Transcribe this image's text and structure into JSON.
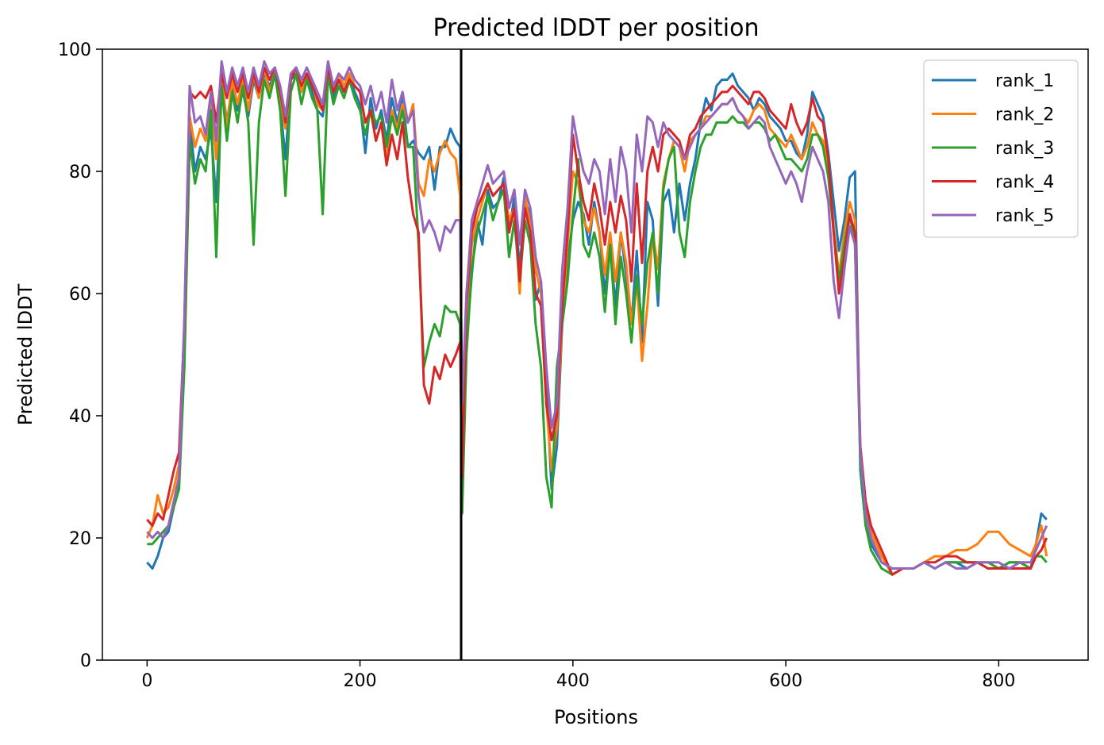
{
  "chart_data": {
    "type": "line",
    "title": "Predicted lDDT per position",
    "xlabel": "Positions",
    "ylabel": "Predicted lDDT",
    "xlim": [
      -42,
      884
    ],
    "ylim": [
      0,
      100
    ],
    "xticks": [
      0,
      200,
      400,
      600,
      800
    ],
    "yticks": [
      0,
      20,
      40,
      60,
      80,
      100
    ],
    "grid": false,
    "legend_position": "top-right",
    "vertical_line": {
      "x": 295,
      "color": "#000000"
    },
    "x": [
      0,
      5,
      10,
      15,
      20,
      25,
      30,
      35,
      40,
      45,
      50,
      55,
      60,
      65,
      70,
      75,
      80,
      85,
      90,
      95,
      100,
      105,
      110,
      115,
      120,
      125,
      130,
      135,
      140,
      145,
      150,
      155,
      160,
      165,
      170,
      175,
      180,
      185,
      190,
      195,
      200,
      205,
      210,
      215,
      220,
      225,
      230,
      235,
      240,
      245,
      250,
      255,
      260,
      265,
      270,
      275,
      280,
      285,
      290,
      294,
      296,
      300,
      305,
      310,
      315,
      320,
      325,
      330,
      335,
      340,
      345,
      350,
      355,
      360,
      365,
      370,
      375,
      380,
      385,
      390,
      395,
      400,
      405,
      410,
      415,
      420,
      425,
      430,
      435,
      440,
      445,
      450,
      455,
      460,
      465,
      470,
      475,
      480,
      485,
      490,
      495,
      500,
      505,
      510,
      515,
      520,
      525,
      530,
      535,
      540,
      545,
      550,
      555,
      560,
      565,
      570,
      575,
      580,
      585,
      590,
      595,
      600,
      605,
      610,
      615,
      620,
      625,
      630,
      635,
      640,
      645,
      650,
      655,
      660,
      665,
      670,
      675,
      680,
      690,
      700,
      710,
      720,
      730,
      740,
      750,
      760,
      770,
      780,
      790,
      800,
      810,
      820,
      830,
      835,
      840,
      845
    ],
    "series": [
      {
        "name": "rank_1",
        "color": "#1f77b4",
        "values": [
          16,
          15,
          17,
          20,
          21,
          25,
          30,
          50,
          88,
          80,
          84,
          82,
          87,
          75,
          95,
          88,
          94,
          90,
          93,
          89,
          95,
          92,
          96,
          94,
          96,
          91,
          82,
          95,
          96,
          93,
          96,
          93,
          90,
          89,
          96,
          92,
          95,
          93,
          96,
          93,
          91,
          83,
          92,
          87,
          90,
          85,
          92,
          88,
          92,
          84,
          85,
          83,
          82,
          84,
          77,
          84,
          84,
          87,
          85,
          84,
          26,
          52,
          63,
          72,
          68,
          77,
          74,
          75,
          79,
          70,
          76,
          64,
          75,
          73,
          59,
          62,
          45,
          28,
          35,
          55,
          65,
          72,
          75,
          73,
          68,
          75,
          70,
          60,
          68,
          58,
          70,
          63,
          55,
          67,
          52,
          75,
          72,
          58,
          75,
          77,
          70,
          78,
          72,
          78,
          82,
          88,
          92,
          90,
          94,
          95,
          95,
          96,
          94,
          93,
          92,
          90,
          92,
          91,
          89,
          88,
          87,
          85,
          85,
          83,
          82,
          86,
          93,
          91,
          89,
          83,
          75,
          67,
          72,
          79,
          80,
          31,
          22,
          19,
          16,
          15,
          15,
          15,
          16,
          15,
          16,
          16,
          15,
          16,
          15,
          15,
          16,
          16,
          15,
          19,
          24,
          23
        ]
      },
      {
        "name": "rank_2",
        "color": "#ff7f0e",
        "values": [
          20,
          22,
          27,
          24,
          25,
          28,
          32,
          55,
          89,
          84,
          87,
          85,
          92,
          82,
          96,
          87,
          95,
          91,
          95,
          90,
          96,
          92,
          97,
          93,
          96,
          92,
          87,
          95,
          97,
          93,
          96,
          95,
          91,
          90,
          97,
          93,
          96,
          94,
          96,
          94,
          93,
          88,
          90,
          85,
          88,
          82,
          90,
          87,
          91,
          88,
          91,
          78,
          76,
          82,
          80,
          83,
          85,
          83,
          82,
          76,
          26,
          55,
          68,
          72,
          75,
          78,
          76,
          77,
          78,
          72,
          74,
          60,
          76,
          71,
          64,
          60,
          42,
          31,
          38,
          56,
          68,
          80,
          78,
          72,
          70,
          74,
          70,
          63,
          70,
          62,
          70,
          65,
          55,
          62,
          49,
          58,
          70,
          64,
          78,
          82,
          85,
          84,
          80,
          85,
          86,
          87,
          89,
          89,
          90,
          91,
          91,
          92,
          90,
          89,
          88,
          90,
          91,
          90,
          87,
          86,
          85,
          84,
          86,
          84,
          82,
          84,
          88,
          86,
          85,
          80,
          71,
          63,
          70,
          75,
          72,
          34,
          25,
          21,
          17,
          14,
          15,
          15,
          16,
          17,
          17,
          18,
          18,
          19,
          21,
          21,
          19,
          18,
          17,
          19,
          22,
          17
        ]
      },
      {
        "name": "rank_3",
        "color": "#2ca02c",
        "values": [
          19,
          19,
          20,
          21,
          22,
          25,
          28,
          48,
          85,
          78,
          82,
          80,
          90,
          66,
          94,
          85,
          93,
          88,
          94,
          88,
          68,
          88,
          95,
          92,
          96,
          90,
          76,
          93,
          96,
          91,
          95,
          92,
          90,
          73,
          96,
          91,
          94,
          92,
          95,
          92,
          90,
          86,
          90,
          88,
          89,
          84,
          89,
          86,
          90,
          84,
          84,
          68,
          48,
          52,
          55,
          53,
          58,
          57,
          57,
          55,
          24,
          50,
          64,
          70,
          73,
          76,
          72,
          75,
          77,
          66,
          72,
          62,
          72,
          68,
          55,
          48,
          30,
          25,
          48,
          55,
          62,
          73,
          82,
          68,
          66,
          70,
          66,
          57,
          68,
          55,
          66,
          60,
          52,
          63,
          55,
          65,
          70,
          60,
          77,
          82,
          84,
          70,
          66,
          75,
          80,
          84,
          86,
          86,
          88,
          88,
          88,
          89,
          88,
          88,
          87,
          88,
          88,
          87,
          85,
          86,
          84,
          82,
          82,
          81,
          80,
          82,
          86,
          86,
          84,
          79,
          70,
          62,
          68,
          73,
          68,
          32,
          22,
          18,
          15,
          14,
          15,
          15,
          16,
          15,
          16,
          16,
          16,
          16,
          16,
          15,
          16,
          16,
          15,
          17,
          17,
          16
        ]
      },
      {
        "name": "rank_4",
        "color": "#d62728",
        "values": [
          23,
          22,
          24,
          23,
          27,
          31,
          34,
          55,
          93,
          92,
          93,
          92,
          94,
          88,
          96,
          92,
          96,
          93,
          96,
          92,
          96,
          93,
          97,
          95,
          97,
          93,
          88,
          95,
          97,
          94,
          96,
          94,
          92,
          90,
          97,
          93,
          95,
          93,
          95,
          94,
          93,
          88,
          90,
          85,
          88,
          81,
          86,
          82,
          88,
          79,
          73,
          70,
          45,
          42,
          48,
          46,
          50,
          48,
          50,
          52,
          30,
          58,
          70,
          74,
          76,
          78,
          76,
          77,
          78,
          70,
          74,
          62,
          74,
          70,
          60,
          58,
          42,
          36,
          40,
          58,
          70,
          86,
          80,
          75,
          72,
          78,
          74,
          68,
          75,
          70,
          76,
          72,
          62,
          78,
          65,
          80,
          84,
          80,
          86,
          87,
          86,
          85,
          82,
          86,
          87,
          89,
          90,
          91,
          92,
          93,
          93,
          94,
          93,
          92,
          91,
          93,
          93,
          92,
          90,
          89,
          88,
          87,
          91,
          88,
          86,
          88,
          92,
          89,
          88,
          82,
          70,
          60,
          66,
          73,
          70,
          35,
          26,
          22,
          18,
          14,
          15,
          15,
          16,
          16,
          17,
          17,
          16,
          16,
          15,
          15,
          15,
          15,
          15,
          17,
          18,
          20
        ]
      },
      {
        "name": "rank_5",
        "color": "#9467bd",
        "values": [
          21,
          20,
          21,
          20,
          22,
          26,
          30,
          56,
          94,
          88,
          89,
          86,
          93,
          85,
          98,
          93,
          97,
          94,
          97,
          93,
          97,
          94,
          98,
          96,
          97,
          94,
          89,
          96,
          97,
          95,
          97,
          95,
          93,
          91,
          98,
          94,
          96,
          95,
          97,
          95,
          94,
          91,
          94,
          90,
          93,
          88,
          95,
          90,
          93,
          88,
          90,
          76,
          70,
          72,
          70,
          67,
          71,
          70,
          72,
          72,
          42,
          60,
          72,
          75,
          78,
          81,
          78,
          79,
          80,
          74,
          77,
          68,
          77,
          74,
          66,
          62,
          48,
          38,
          42,
          64,
          74,
          89,
          84,
          80,
          78,
          82,
          80,
          73,
          82,
          75,
          84,
          80,
          70,
          86,
          80,
          89,
          88,
          84,
          88,
          86,
          85,
          84,
          82,
          84,
          86,
          87,
          88,
          89,
          90,
          91,
          91,
          92,
          90,
          89,
          87,
          88,
          89,
          88,
          84,
          82,
          80,
          78,
          80,
          78,
          75,
          80,
          84,
          82,
          80,
          75,
          62,
          56,
          64,
          71,
          68,
          34,
          24,
          20,
          16,
          15,
          15,
          15,
          16,
          15,
          16,
          15,
          15,
          16,
          16,
          16,
          15,
          16,
          16,
          18,
          20,
          22
        ]
      }
    ]
  }
}
